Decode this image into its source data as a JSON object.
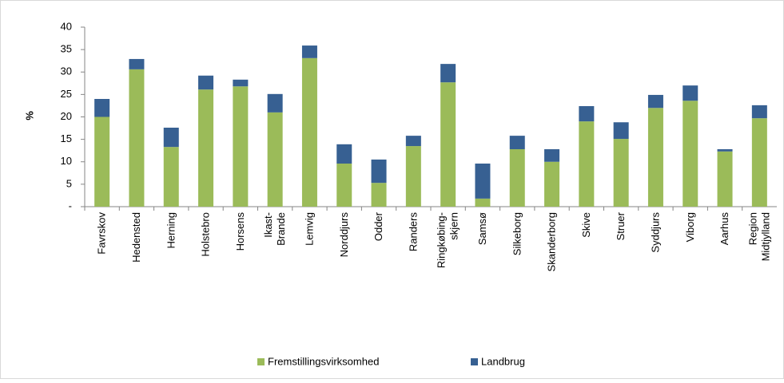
{
  "chart_data": {
    "type": "stacked-bar",
    "y_label": "%",
    "categories": [
      "Favrskov",
      "Hedensted",
      "Herning",
      "Holstebro",
      "Horsens",
      "Ikast-\nBrande",
      "Lemvig",
      "Norddjurs",
      "Odder",
      "Randers",
      "Ringkøbing-\nskjern",
      "Samsø",
      "Silkeborg",
      "Skanderborg",
      "Skive",
      "Struer",
      "Syddjurs",
      "Viborg",
      "Aarhus",
      "Region\nMidtjylland"
    ],
    "series": [
      {
        "name": "Fremstillingsvirksomhed",
        "color": "#9bbb59",
        "values": [
          20,
          30.6,
          13.3,
          26.1,
          26.8,
          21,
          33.1,
          9.6,
          5.3,
          13.5,
          27.7,
          1.8,
          12.8,
          10,
          19,
          15.1,
          22,
          23.6,
          12.3,
          19.7
        ]
      },
      {
        "name": "Landbrug",
        "color": "#376092",
        "values": [
          4,
          2.3,
          4.3,
          3.1,
          1.5,
          4.1,
          2.8,
          4.3,
          5.2,
          2.3,
          4.1,
          7.8,
          3,
          2.8,
          3.4,
          3.7,
          2.9,
          3.4,
          0.5,
          2.9
        ]
      }
    ],
    "ylim": [
      0,
      40
    ],
    "yticks": [
      {
        "value": 0,
        "label": "-"
      },
      5,
      10,
      15,
      20,
      25,
      30,
      35,
      40
    ],
    "legend": "bottom"
  }
}
